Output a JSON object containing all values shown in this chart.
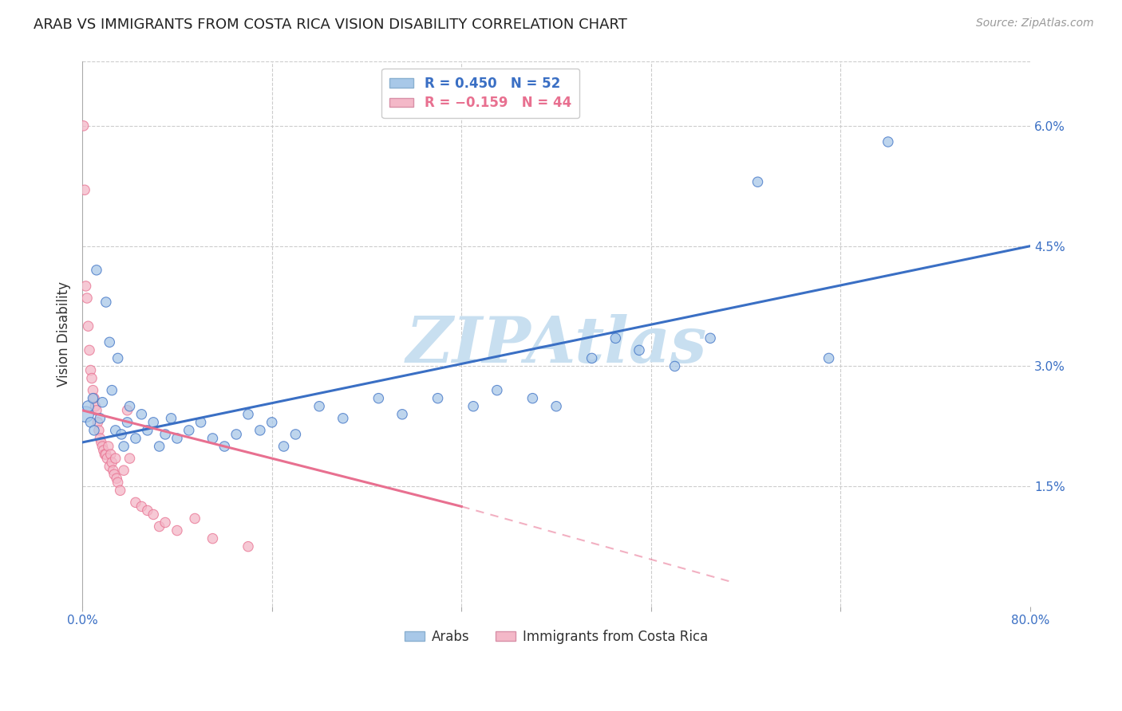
{
  "title": "ARAB VS IMMIGRANTS FROM COSTA RICA VISION DISABILITY CORRELATION CHART",
  "source": "Source: ZipAtlas.com",
  "ylabel": "Vision Disability",
  "right_ytick_vals": [
    0.0,
    1.5,
    3.0,
    4.5,
    6.0
  ],
  "right_ytick_labels": [
    "",
    "1.5%",
    "3.0%",
    "4.5%",
    "6.0%"
  ],
  "xlim": [
    0.0,
    80.0
  ],
  "ylim": [
    0.0,
    6.8
  ],
  "legend_box_colors": [
    "#a8c8e8",
    "#f4b8c8"
  ],
  "watermark": "ZIPAtlas",
  "watermark_color": "#c8dff0",
  "arab_color": "#a8c8e8",
  "cr_color": "#f4b8c8",
  "blue_line_color": "#3a6fc4",
  "pink_line_color": "#e87090",
  "grid_color": "#cccccc",
  "background_color": "#ffffff",
  "title_fontsize": 13,
  "axis_label_color": "#3a6fc4",
  "tick_label_color": "#3a6fc4",
  "arab_dots": [
    [
      0.3,
      2.4
    ],
    [
      0.5,
      2.5
    ],
    [
      0.7,
      2.3
    ],
    [
      0.9,
      2.6
    ],
    [
      1.0,
      2.2
    ],
    [
      1.2,
      4.2
    ],
    [
      1.5,
      2.35
    ],
    [
      1.7,
      2.55
    ],
    [
      2.0,
      3.8
    ],
    [
      2.3,
      3.3
    ],
    [
      2.5,
      2.7
    ],
    [
      2.8,
      2.2
    ],
    [
      3.0,
      3.1
    ],
    [
      3.3,
      2.15
    ],
    [
      3.5,
      2.0
    ],
    [
      3.8,
      2.3
    ],
    [
      4.0,
      2.5
    ],
    [
      4.5,
      2.1
    ],
    [
      5.0,
      2.4
    ],
    [
      5.5,
      2.2
    ],
    [
      6.0,
      2.3
    ],
    [
      6.5,
      2.0
    ],
    [
      7.0,
      2.15
    ],
    [
      7.5,
      2.35
    ],
    [
      8.0,
      2.1
    ],
    [
      9.0,
      2.2
    ],
    [
      10.0,
      2.3
    ],
    [
      11.0,
      2.1
    ],
    [
      12.0,
      2.0
    ],
    [
      13.0,
      2.15
    ],
    [
      14.0,
      2.4
    ],
    [
      15.0,
      2.2
    ],
    [
      16.0,
      2.3
    ],
    [
      17.0,
      2.0
    ],
    [
      18.0,
      2.15
    ],
    [
      20.0,
      2.5
    ],
    [
      22.0,
      2.35
    ],
    [
      25.0,
      2.6
    ],
    [
      27.0,
      2.4
    ],
    [
      30.0,
      2.6
    ],
    [
      33.0,
      2.5
    ],
    [
      35.0,
      2.7
    ],
    [
      38.0,
      2.6
    ],
    [
      40.0,
      2.5
    ],
    [
      43.0,
      3.1
    ],
    [
      45.0,
      3.35
    ],
    [
      47.0,
      3.2
    ],
    [
      50.0,
      3.0
    ],
    [
      53.0,
      3.35
    ],
    [
      57.0,
      5.3
    ],
    [
      63.0,
      3.1
    ],
    [
      68.0,
      5.8
    ]
  ],
  "arab_sizes": [
    200,
    100,
    80,
    80,
    80,
    80,
    80,
    80,
    80,
    80,
    80,
    80,
    80,
    80,
    80,
    80,
    80,
    80,
    80,
    80,
    80,
    80,
    80,
    80,
    80,
    80,
    80,
    80,
    80,
    80,
    80,
    80,
    80,
    80,
    80,
    80,
    80,
    80,
    80,
    80,
    80,
    80,
    80,
    80,
    80,
    80,
    80,
    80,
    80,
    80,
    80,
    80
  ],
  "cr_dots": [
    [
      0.1,
      6.0
    ],
    [
      0.2,
      5.2
    ],
    [
      0.3,
      4.0
    ],
    [
      0.4,
      3.85
    ],
    [
      0.5,
      3.5
    ],
    [
      0.6,
      3.2
    ],
    [
      0.7,
      2.95
    ],
    [
      0.8,
      2.85
    ],
    [
      0.9,
      2.7
    ],
    [
      1.0,
      2.6
    ],
    [
      1.1,
      2.5
    ],
    [
      1.2,
      2.45
    ],
    [
      1.3,
      2.3
    ],
    [
      1.4,
      2.2
    ],
    [
      1.5,
      2.1
    ],
    [
      1.6,
      2.05
    ],
    [
      1.7,
      2.0
    ],
    [
      1.8,
      1.95
    ],
    [
      1.9,
      1.9
    ],
    [
      2.0,
      1.9
    ],
    [
      2.1,
      1.85
    ],
    [
      2.2,
      2.0
    ],
    [
      2.3,
      1.75
    ],
    [
      2.4,
      1.9
    ],
    [
      2.5,
      1.8
    ],
    [
      2.6,
      1.7
    ],
    [
      2.7,
      1.65
    ],
    [
      2.8,
      1.85
    ],
    [
      2.9,
      1.6
    ],
    [
      3.0,
      1.55
    ],
    [
      3.2,
      1.45
    ],
    [
      3.5,
      1.7
    ],
    [
      3.8,
      2.45
    ],
    [
      4.0,
      1.85
    ],
    [
      4.5,
      1.3
    ],
    [
      5.0,
      1.25
    ],
    [
      5.5,
      1.2
    ],
    [
      6.0,
      1.15
    ],
    [
      6.5,
      1.0
    ],
    [
      7.0,
      1.05
    ],
    [
      8.0,
      0.95
    ],
    [
      9.5,
      1.1
    ],
    [
      11.0,
      0.85
    ],
    [
      14.0,
      0.75
    ]
  ],
  "cr_sizes": [
    80,
    80,
    80,
    80,
    80,
    80,
    80,
    80,
    80,
    80,
    80,
    80,
    80,
    80,
    80,
    80,
    80,
    80,
    80,
    80,
    80,
    80,
    80,
    80,
    80,
    80,
    80,
    80,
    80,
    80,
    80,
    80,
    80,
    80,
    80,
    80,
    80,
    80,
    80,
    80,
    80,
    80,
    80,
    80
  ],
  "blue_line": {
    "x0": 0,
    "y0": 2.05,
    "x1": 80,
    "y1": 4.5
  },
  "pink_solid_line": {
    "x0": 0,
    "y0": 2.45,
    "x1": 32,
    "y1": 1.25
  },
  "pink_dash_line": {
    "x0": 32,
    "y0": 1.25,
    "x1": 55,
    "y1": 0.3
  },
  "xtick_positions": [
    0,
    16,
    32,
    48,
    64,
    80
  ],
  "xtick_labels": [
    "0.0%",
    "",
    "",
    "",
    "",
    "80.0%"
  ]
}
